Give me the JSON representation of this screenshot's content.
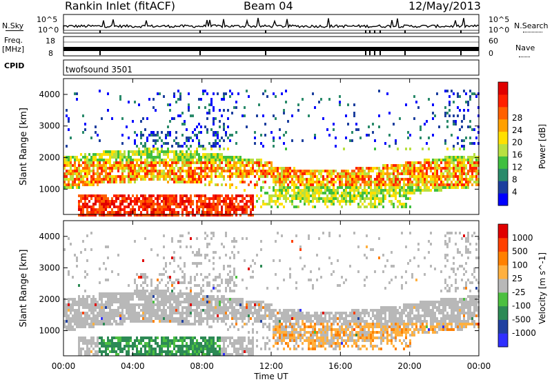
{
  "header": {
    "title": "Rankin Inlet (fitACF)",
    "beam": "Beam 04",
    "date": "12/May/2013"
  },
  "strip_panels": {
    "nsky_label": "N.Sky",
    "nsky_ticks": [
      "10^5",
      "10^0"
    ],
    "nsearch_label": "N.Search",
    "nsearch_ticks": [
      "10^5",
      "10^0"
    ],
    "freq_label_1": "Freq.",
    "freq_label_2": "[MHz]",
    "freq_ticks": [
      "18",
      "8"
    ],
    "nave_label": "Nave",
    "nave_ticks": [
      "60",
      "0"
    ],
    "cpid_label": "CPID",
    "cpid_value": "twofsound 3501"
  },
  "chart_data": [
    {
      "type": "heatmap",
      "panel": "power",
      "ylabel": "Slant Range [km]",
      "yticks": [
        "1000",
        "2000",
        "3000",
        "4000"
      ],
      "ylim": [
        200,
        4500
      ],
      "xlim": [
        "00:00",
        "24:00"
      ],
      "colorbar": {
        "label": "Power [dB]",
        "ticks": [
          "4",
          "8",
          "12",
          "16",
          "20",
          "24",
          "28"
        ],
        "colors": [
          "#0000ff",
          "#1c3f9e",
          "#2a8a6a",
          "#3fbf3f",
          "#b8e040",
          "#ffe000",
          "#ffa000",
          "#ff6000",
          "#ff2000",
          "#e00000"
        ]
      }
    },
    {
      "type": "heatmap",
      "panel": "velocity",
      "ylabel": "Slant Range [km]",
      "yticks": [
        "1000",
        "2000",
        "3000",
        "4000"
      ],
      "ylim": [
        200,
        4500
      ],
      "xlim": [
        "00:00",
        "24:00"
      ],
      "colorbar": {
        "label": "Velocity [m s^-1]",
        "ticks": [
          "1000",
          "500",
          "100",
          "25",
          "-25",
          "-100",
          "-500",
          "-1000"
        ],
        "colors": [
          "#3030ff",
          "#2040a0",
          "#2d8a55",
          "#4cc040",
          "#b8b8b8",
          "#ffb040",
          "#ff8000",
          "#ff4000",
          "#e00000"
        ]
      }
    }
  ],
  "x_axis": {
    "label": "Time UT",
    "ticks": [
      "00:00",
      "04:00",
      "08:00",
      "12:00",
      "16:00",
      "20:00",
      "00:00"
    ]
  }
}
